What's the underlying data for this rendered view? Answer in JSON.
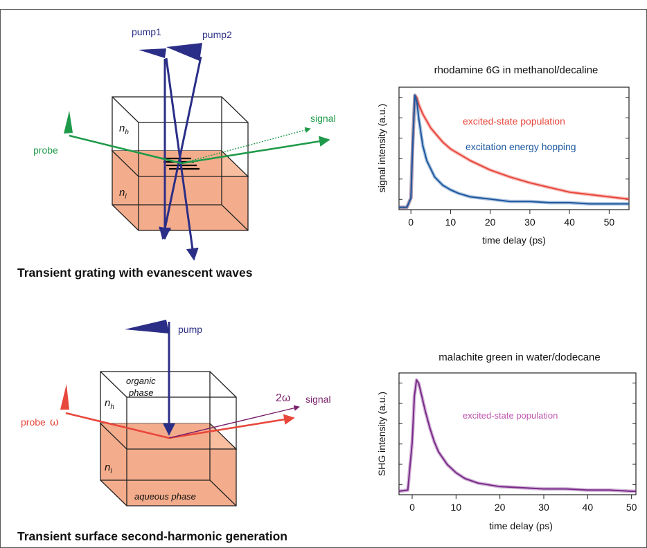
{
  "top_diagram": {
    "caption": "Transient grating with evanescent waves",
    "pump1": "pump1",
    "pump2": "pump2",
    "probe": "probe",
    "signal": "signal",
    "n_upper": "n",
    "n_upper_sub": "h",
    "n_lower": "n",
    "n_lower_sub": "l",
    "colors": {
      "pump": "#2b2e86",
      "probe": "#1f9a4a",
      "lower_phase": "#f4ad8c"
    }
  },
  "bottom_diagram": {
    "caption": "Transient surface second-harmonic generation",
    "pump": "pump",
    "probe": "probe",
    "omega": "ω",
    "two_omega": "2ω",
    "signal": "signal",
    "organic_line1": "organic",
    "organic_line2": "phase",
    "aqueous": "aqueous phase",
    "n_upper": "n",
    "n_upper_sub": "h",
    "n_lower": "n",
    "n_lower_sub": "l",
    "colors": {
      "pump": "#2b2e86",
      "probe": "#e8473c",
      "signal": "#7a1f6a",
      "lower_phase": "#f4ad8c"
    }
  },
  "chart_data": [
    {
      "type": "line",
      "title": "rhodamine 6G in methanol/decaline",
      "xlabel": "time delay (ps)",
      "ylabel": "signal intensity (a.u.)",
      "xlim": [
        -3,
        55
      ],
      "xticks": [
        0,
        10,
        20,
        30,
        40,
        50
      ],
      "ylim": [
        0,
        1.05
      ],
      "y_tick_count": 6,
      "y_tick_labels_shown": false,
      "annotations": [
        "excited-state population",
        "excitation energy hopping"
      ],
      "series": [
        {
          "color": "#e8473c",
          "x": [
            -3,
            -1,
            0,
            0.5,
            1,
            1.5,
            2,
            3,
            5,
            8,
            10,
            15,
            20,
            25,
            30,
            35,
            40,
            45,
            50,
            55
          ],
          "y": [
            0.02,
            0.02,
            0.1,
            0.6,
            0.98,
            0.96,
            0.9,
            0.82,
            0.7,
            0.58,
            0.52,
            0.42,
            0.34,
            0.28,
            0.23,
            0.19,
            0.15,
            0.13,
            0.11,
            0.09
          ]
        },
        {
          "color": "#1c58a0",
          "x": [
            -3,
            -1,
            0,
            0.5,
            1,
            1.5,
            2,
            3,
            4,
            6,
            8,
            10,
            12,
            15,
            20,
            25,
            30,
            35,
            40,
            45,
            50,
            55
          ],
          "y": [
            0.02,
            0.02,
            0.1,
            0.6,
            0.98,
            0.92,
            0.78,
            0.55,
            0.42,
            0.28,
            0.21,
            0.17,
            0.14,
            0.11,
            0.09,
            0.07,
            0.07,
            0.06,
            0.06,
            0.05,
            0.05,
            0.05
          ]
        }
      ]
    },
    {
      "type": "line",
      "title": "malachite green in water/dodecane",
      "xlabel": "time delay (ps)",
      "ylabel": "SHG intensity (a.u.)",
      "xlim": [
        -3,
        51
      ],
      "xticks": [
        0,
        10,
        20,
        30,
        40,
        50
      ],
      "ylim": [
        0,
        1.05
      ],
      "y_tick_count": 6,
      "y_tick_labels_shown": false,
      "annotations": [
        "excited-state population"
      ],
      "series": [
        {
          "color": "#7a2a8a",
          "x": [
            -3,
            -1,
            0,
            0.5,
            1,
            1.5,
            2,
            3,
            4,
            5,
            6,
            8,
            10,
            12,
            15,
            20,
            25,
            30,
            35,
            40,
            45,
            50,
            51
          ],
          "y": [
            0.03,
            0.04,
            0.45,
            0.85,
            0.99,
            0.96,
            0.88,
            0.72,
            0.58,
            0.46,
            0.37,
            0.26,
            0.19,
            0.14,
            0.1,
            0.07,
            0.06,
            0.05,
            0.05,
            0.04,
            0.04,
            0.03,
            0.03
          ]
        }
      ]
    }
  ]
}
